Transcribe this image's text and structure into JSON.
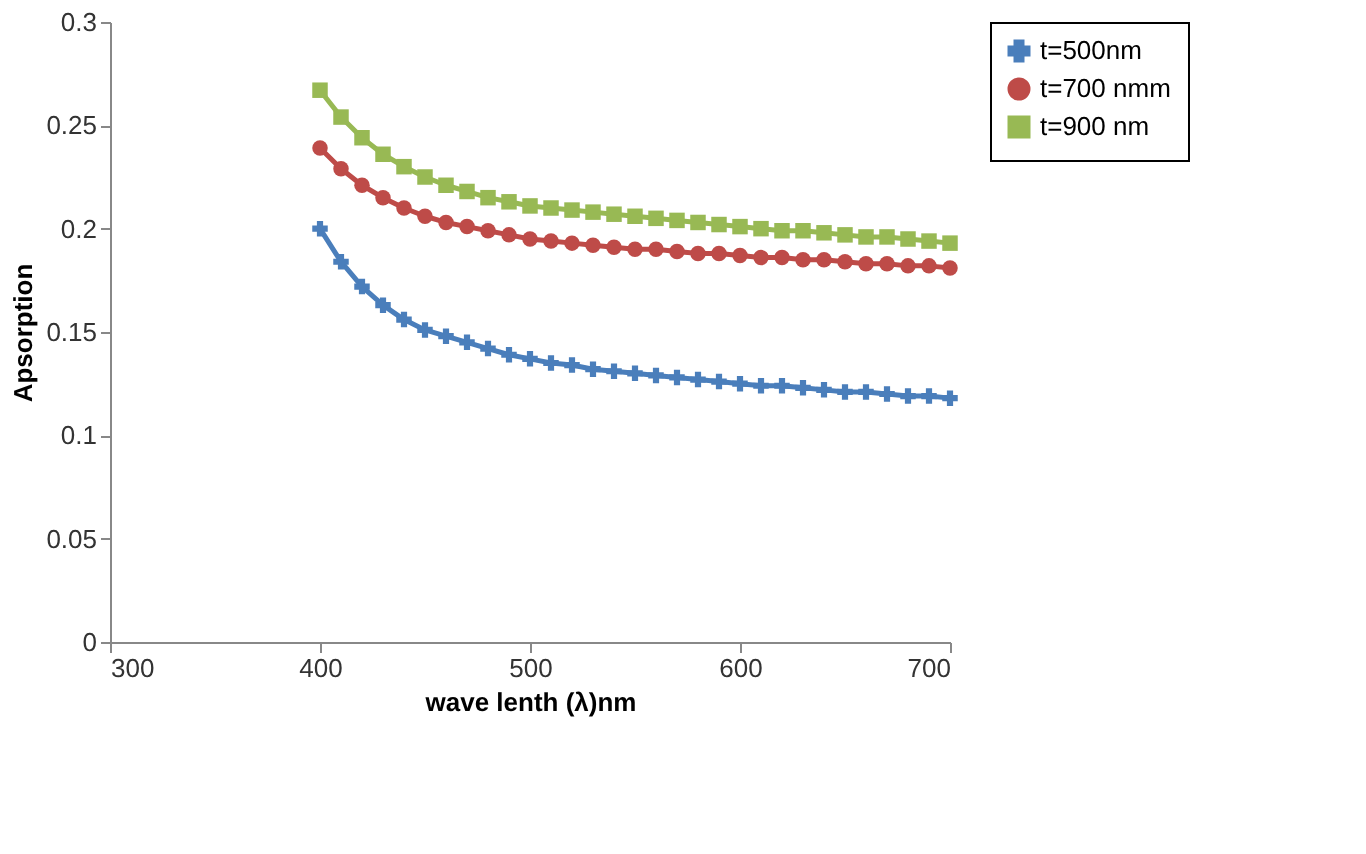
{
  "chart_data": {
    "type": "line",
    "xlabel": "wave lenth (λ)nm",
    "ylabel": "Apsorption",
    "x": [
      400,
      410,
      420,
      430,
      440,
      450,
      460,
      470,
      480,
      490,
      500,
      510,
      520,
      530,
      540,
      550,
      560,
      570,
      580,
      590,
      600,
      610,
      620,
      630,
      640,
      650,
      660,
      670,
      680,
      690,
      700
    ],
    "series": [
      {
        "name": "t=500nm",
        "color": "#4a7ebb",
        "marker": "cross",
        "values": [
          0.2,
          0.184,
          0.172,
          0.163,
          0.156,
          0.151,
          0.148,
          0.145,
          0.142,
          0.139,
          0.137,
          0.135,
          0.134,
          0.132,
          0.131,
          0.13,
          0.129,
          0.128,
          0.127,
          0.126,
          0.125,
          0.124,
          0.124,
          0.123,
          0.122,
          0.121,
          0.121,
          0.12,
          0.119,
          0.119,
          0.118
        ]
      },
      {
        "name": "t=700 nmm",
        "color": "#be4b48",
        "marker": "circle",
        "values": [
          0.239,
          0.229,
          0.221,
          0.215,
          0.21,
          0.206,
          0.203,
          0.201,
          0.199,
          0.197,
          0.195,
          0.194,
          0.193,
          0.192,
          0.191,
          0.19,
          0.19,
          0.189,
          0.188,
          0.188,
          0.187,
          0.186,
          0.186,
          0.185,
          0.185,
          0.184,
          0.183,
          0.183,
          0.182,
          0.182,
          0.181
        ]
      },
      {
        "name": "t=900 nm",
        "color": "#98b954",
        "marker": "square",
        "values": [
          0.267,
          0.254,
          0.244,
          0.236,
          0.23,
          0.225,
          0.221,
          0.218,
          0.215,
          0.213,
          0.211,
          0.21,
          0.209,
          0.208,
          0.207,
          0.206,
          0.205,
          0.204,
          0.203,
          0.202,
          0.201,
          0.2,
          0.199,
          0.199,
          0.198,
          0.197,
          0.196,
          0.196,
          0.195,
          0.194,
          0.193
        ]
      }
    ],
    "xlim": [
      300,
      700
    ],
    "xticks": [
      300,
      400,
      500,
      600,
      700
    ],
    "ylim": [
      0,
      0.3
    ],
    "yticks": [
      0,
      0.05,
      0.1,
      0.15,
      0.2,
      0.25,
      0.3
    ],
    "grid": false,
    "legend": "top right",
    "line_style": "solid"
  }
}
